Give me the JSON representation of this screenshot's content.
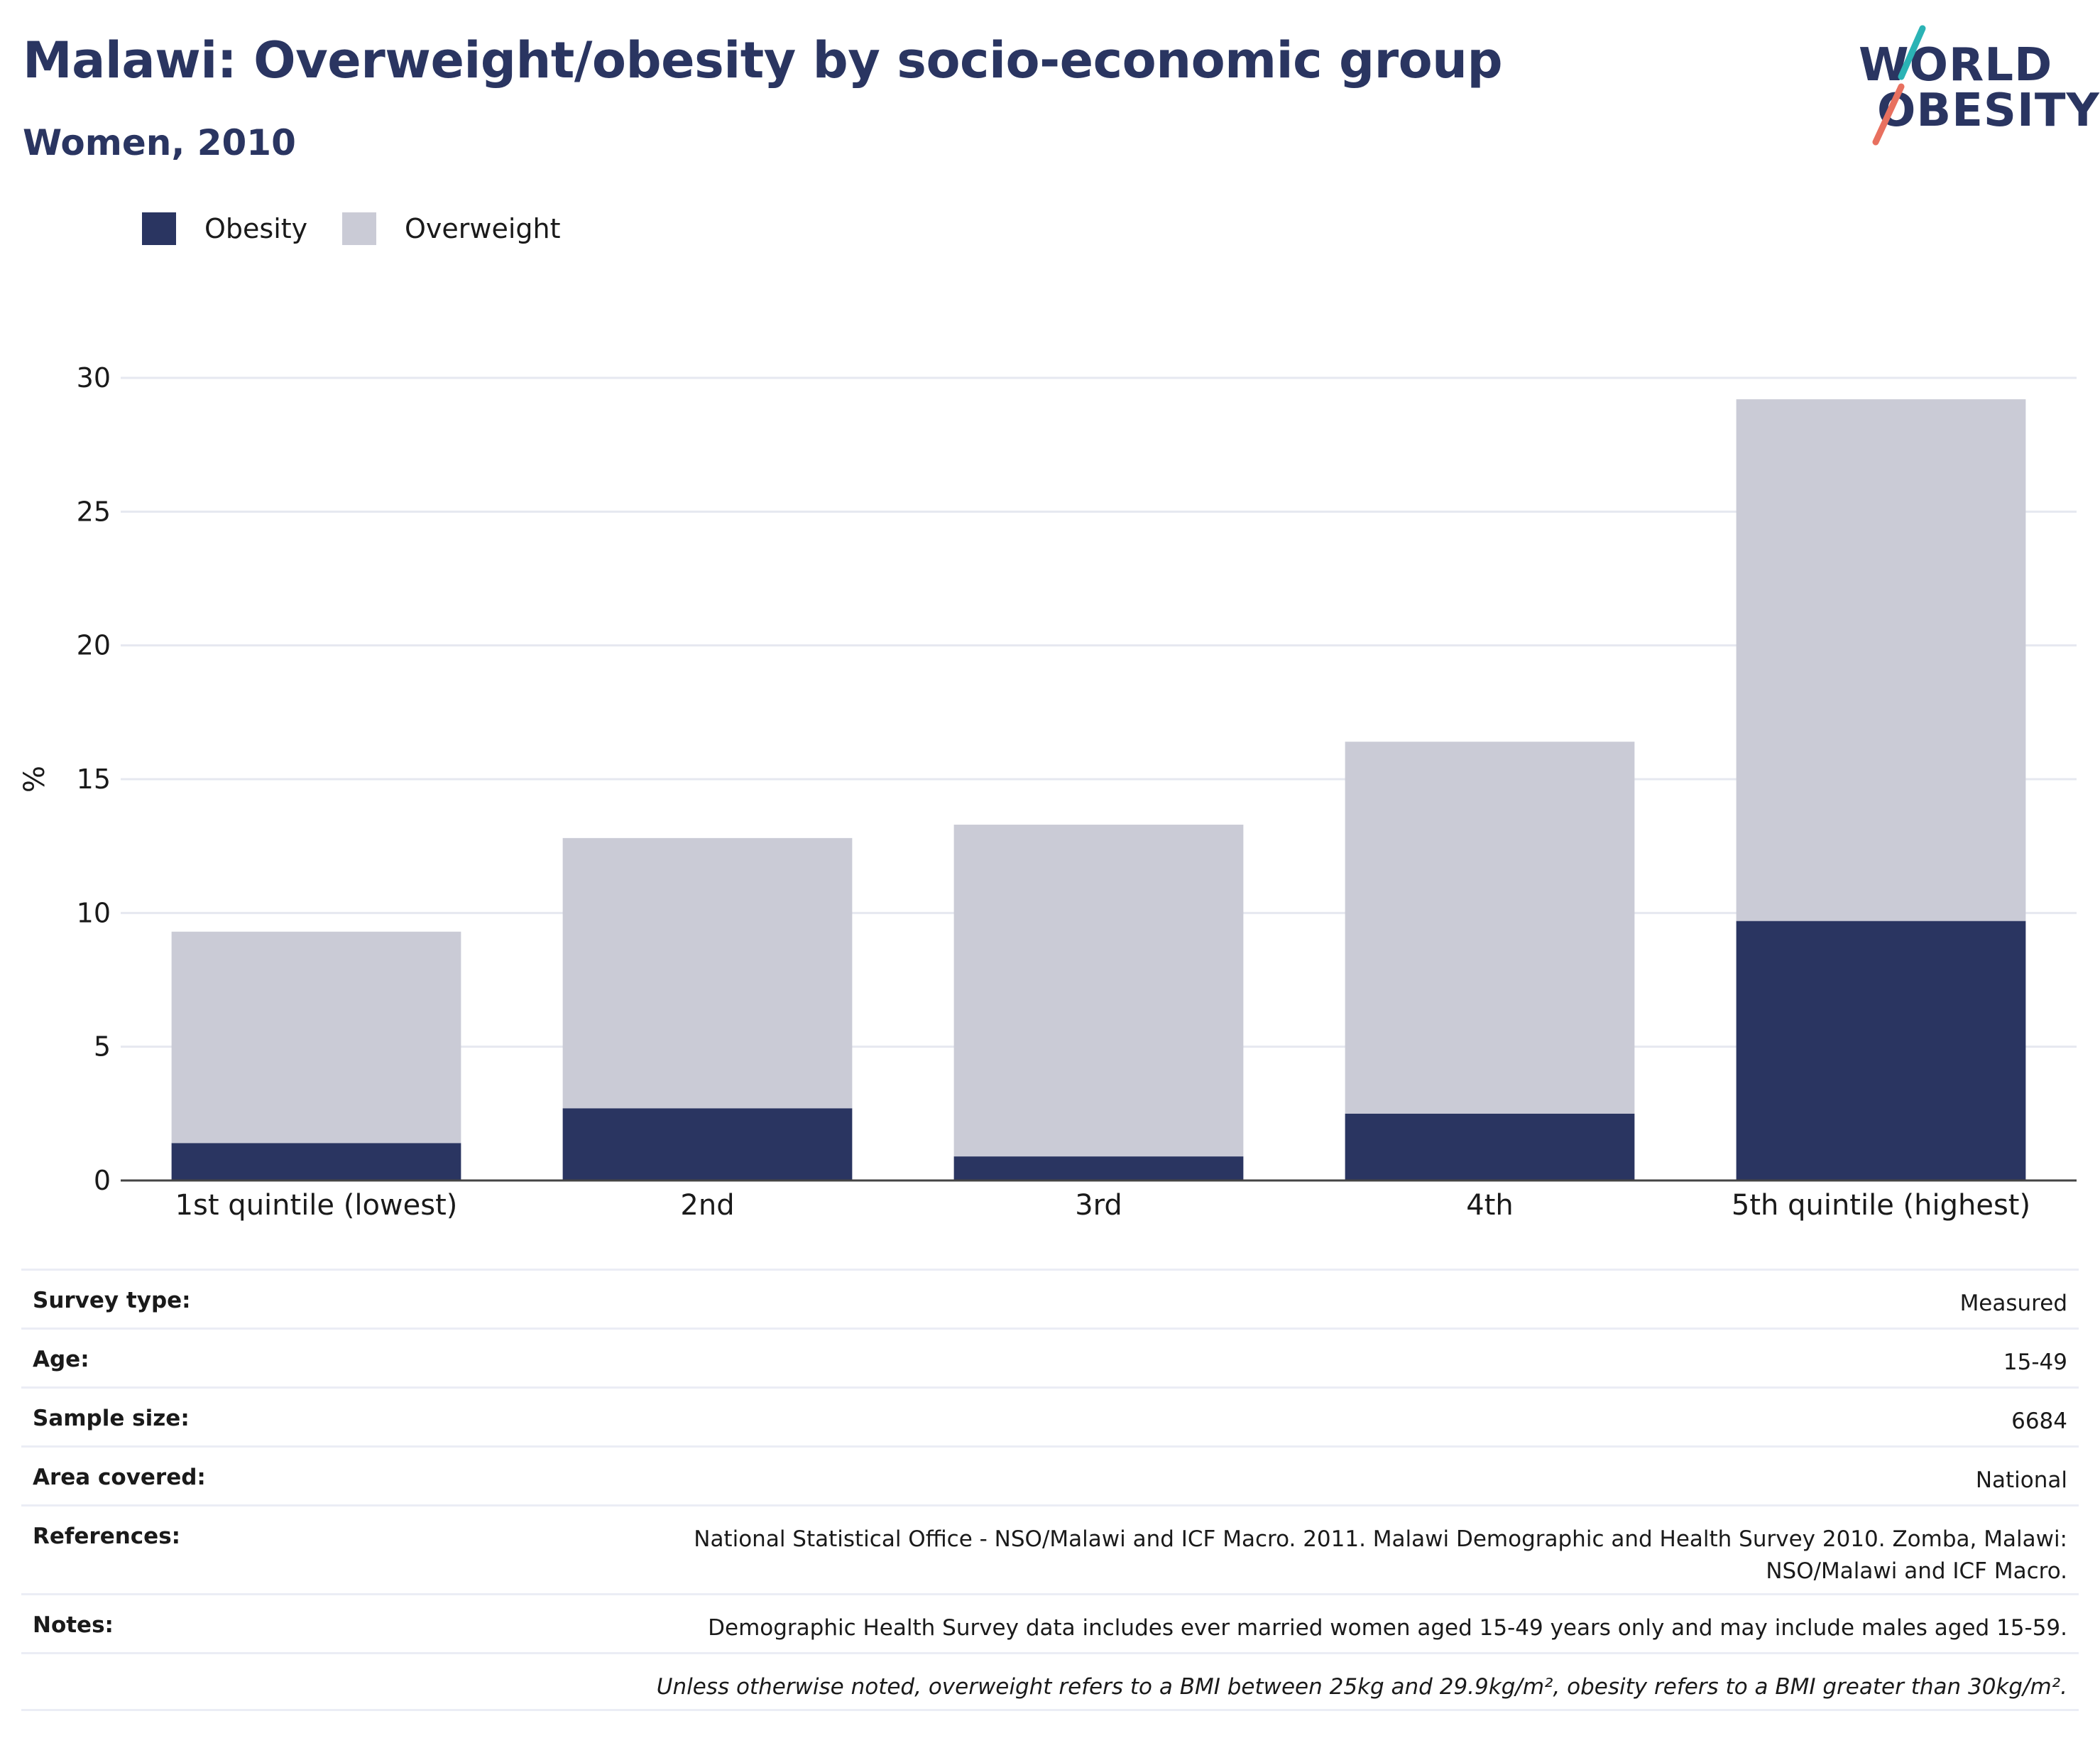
{
  "header": {
    "title": "Malawi: Overweight/obesity by socio-economic group",
    "subtitle": "Women, 2010"
  },
  "logo": {
    "line1": "WORLD",
    "line2": "OBESITY"
  },
  "colors": {
    "obesity": "#2a3561",
    "overweight": "#cacbd6",
    "title": "#2a3561",
    "logo_teal": "#2bb3b5",
    "logo_coral": "#e8705f"
  },
  "legend": [
    {
      "label": "Obesity",
      "color": "#2a3561"
    },
    {
      "label": "Overweight",
      "color": "#cacbd6"
    }
  ],
  "chart_data": {
    "type": "bar",
    "stacked": true,
    "categories": [
      "1st quintile (lowest)",
      "2nd",
      "3rd",
      "4th",
      "5th quintile (highest)"
    ],
    "series": [
      {
        "name": "Obesity",
        "values": [
          1.4,
          2.7,
          0.9,
          2.5,
          9.7
        ]
      },
      {
        "name": "Overweight",
        "values": [
          7.9,
          10.1,
          12.4,
          13.9,
          19.5
        ]
      }
    ],
    "title": "Malawi: Overweight/obesity by socio-economic group",
    "subtitle": "Women, 2010",
    "xlabel": "",
    "ylabel": "%",
    "ylim": [
      0,
      30
    ],
    "yticks": [
      0,
      5,
      10,
      15,
      20,
      25,
      30
    ],
    "grid": true,
    "legend_position": "top-left"
  },
  "info": [
    {
      "label": "Survey type:",
      "value": "Measured"
    },
    {
      "label": "Age:",
      "value": "15-49"
    },
    {
      "label": "Sample size:",
      "value": "6684"
    },
    {
      "label": "Area covered:",
      "value": "National"
    },
    {
      "label": "References:",
      "value": "National Statistical Office - NSO/Malawi and ICF Macro. 2011. Malawi Demographic and Health Survey 2010. Zomba, Malawi: NSO/Malawi and ICF Macro."
    },
    {
      "label": "Notes:",
      "value": "Demographic Health Survey data includes ever married women aged 15-49 years only and may include males aged 15-59."
    }
  ],
  "footnote": "Unless otherwise noted, overweight refers to a BMI between 25kg and 29.9kg/m², obesity refers to a BMI greater than 30kg/m²."
}
